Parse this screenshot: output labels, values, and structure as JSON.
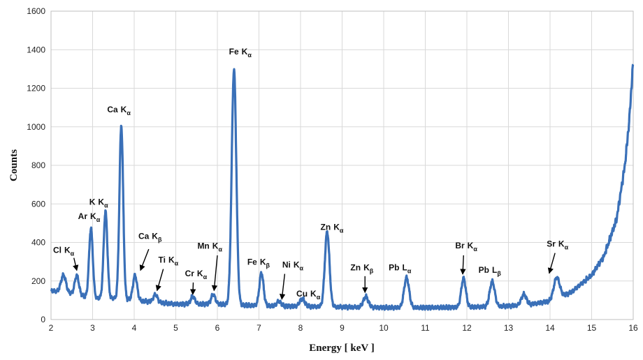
{
  "chart_data": {
    "type": "line",
    "xlabel": "Energy [ keV ]",
    "ylabel": "Counts",
    "xlim": [
      2,
      16
    ],
    "ylim": [
      0,
      1600
    ],
    "xticks": [
      "2",
      "3",
      "4",
      "5",
      "6",
      "7",
      "8",
      "9",
      "10",
      "11",
      "12",
      "13",
      "14",
      "15",
      "16"
    ],
    "yticks": [
      "0",
      "200",
      "400",
      "600",
      "800",
      "1000",
      "1200",
      "1400",
      "1600"
    ],
    "grid": true,
    "series_color": "#3a70b8",
    "baseline": [
      [
        2.0,
        150
      ],
      [
        2.6,
        130
      ],
      [
        3.0,
        110
      ],
      [
        3.5,
        110
      ],
      [
        4.0,
        100
      ],
      [
        4.5,
        90
      ],
      [
        5.0,
        80
      ],
      [
        5.5,
        80
      ],
      [
        6.0,
        80
      ],
      [
        6.5,
        75
      ],
      [
        7.0,
        72
      ],
      [
        8.0,
        68
      ],
      [
        9.0,
        65
      ],
      [
        10.0,
        62
      ],
      [
        11.0,
        62
      ],
      [
        12.0,
        64
      ],
      [
        13.0,
        70
      ],
      [
        13.5,
        78
      ],
      [
        14.0,
        95
      ],
      [
        14.5,
        140
      ],
      [
        15.0,
        230
      ],
      [
        15.3,
        330
      ],
      [
        15.6,
        520
      ],
      [
        15.8,
        800
      ],
      [
        15.9,
        1020
      ],
      [
        16.0,
        1340
      ]
    ],
    "peaks": [
      {
        "x": 2.3,
        "height": 90,
        "width": 0.06
      },
      {
        "x": 2.62,
        "height": 100,
        "width": 0.05
      },
      {
        "x": 2.96,
        "height": 360,
        "width": 0.045
      },
      {
        "x": 3.31,
        "height": 450,
        "width": 0.045
      },
      {
        "x": 3.69,
        "height": 900,
        "width": 0.045
      },
      {
        "x": 4.02,
        "height": 130,
        "width": 0.05
      },
      {
        "x": 4.51,
        "height": 40,
        "width": 0.05
      },
      {
        "x": 5.41,
        "height": 40,
        "width": 0.05
      },
      {
        "x": 5.9,
        "height": 50,
        "width": 0.05
      },
      {
        "x": 6.4,
        "height": 1220,
        "width": 0.055
      },
      {
        "x": 7.06,
        "height": 170,
        "width": 0.05
      },
      {
        "x": 7.48,
        "height": 25,
        "width": 0.05
      },
      {
        "x": 8.04,
        "height": 40,
        "width": 0.06
      },
      {
        "x": 8.64,
        "height": 390,
        "width": 0.055
      },
      {
        "x": 9.57,
        "height": 55,
        "width": 0.06
      },
      {
        "x": 10.55,
        "height": 155,
        "width": 0.06
      },
      {
        "x": 11.92,
        "height": 150,
        "width": 0.055
      },
      {
        "x": 12.61,
        "height": 130,
        "width": 0.06
      },
      {
        "x": 13.37,
        "height": 55,
        "width": 0.06
      },
      {
        "x": 14.16,
        "height": 110,
        "width": 0.07
      }
    ],
    "annotations": [
      {
        "element": "Cl",
        "line": "K",
        "sub": "α",
        "text_x": 2.05,
        "text_y": 345,
        "arrow": {
          "from": [
            2.55,
            320
          ],
          "to": [
            2.62,
            255
          ]
        }
      },
      {
        "element": "Ar",
        "line": "K",
        "sub": "α",
        "text_x": 2.65,
        "text_y": 522,
        "arrow": null
      },
      {
        "element": "K",
        "line": "K",
        "sub": "α",
        "text_x": 2.92,
        "text_y": 595,
        "arrow": null
      },
      {
        "element": "Ca",
        "line": "K",
        "sub": "α",
        "text_x": 3.35,
        "text_y": 1075,
        "arrow": null
      },
      {
        "element": "Ca",
        "line": "K",
        "sub": "β",
        "text_x": 4.1,
        "text_y": 418,
        "arrow": {
          "from": [
            4.35,
            365
          ],
          "to": [
            4.15,
            255
          ]
        }
      },
      {
        "element": "Ti",
        "line": "K",
        "sub": "α",
        "text_x": 4.58,
        "text_y": 295,
        "arrow": {
          "from": [
            4.7,
            262
          ],
          "to": [
            4.55,
            150
          ]
        }
      },
      {
        "element": "Cr",
        "line": "K",
        "sub": "α",
        "text_x": 5.22,
        "text_y": 225,
        "arrow": {
          "from": [
            5.42,
            192
          ],
          "to": [
            5.41,
            130
          ]
        }
      },
      {
        "element": "Mn",
        "line": "K",
        "sub": "α",
        "text_x": 5.52,
        "text_y": 368,
        "arrow": {
          "from": [
            6.0,
            333
          ],
          "to": [
            5.92,
            150
          ]
        }
      },
      {
        "element": "Fe",
        "line": "K",
        "sub": "α",
        "text_x": 6.28,
        "text_y": 1375,
        "arrow": null
      },
      {
        "element": "Fe",
        "line": "K",
        "sub": "β",
        "text_x": 6.72,
        "text_y": 285,
        "arrow": null
      },
      {
        "element": "Ni",
        "line": "K",
        "sub": "α",
        "text_x": 7.56,
        "text_y": 270,
        "arrow": {
          "from": [
            7.62,
            237
          ],
          "to": [
            7.55,
            105
          ]
        }
      },
      {
        "element": "Cu",
        "line": "K",
        "sub": "α",
        "text_x": 7.9,
        "text_y": 120,
        "arrow": null
      },
      {
        "element": "Zn",
        "line": "K",
        "sub": "α",
        "text_x": 8.48,
        "text_y": 465,
        "arrow": null
      },
      {
        "element": "Zn",
        "line": "K",
        "sub": "β",
        "text_x": 9.2,
        "text_y": 255,
        "arrow": {
          "from": [
            9.55,
            225
          ],
          "to": [
            9.55,
            140
          ]
        }
      },
      {
        "element": "Pb",
        "line": "L",
        "sub": "α",
        "text_x": 10.12,
        "text_y": 255,
        "arrow": null
      },
      {
        "element": "Br",
        "line": "K",
        "sub": "α",
        "text_x": 11.72,
        "text_y": 370,
        "arrow": {
          "from": [
            11.92,
            333
          ],
          "to": [
            11.9,
            235
          ]
        }
      },
      {
        "element": "Pb",
        "line": "L",
        "sub": "β",
        "text_x": 12.28,
        "text_y": 242,
        "arrow": null
      },
      {
        "element": "Sr",
        "line": "K",
        "sub": "α",
        "text_x": 13.92,
        "text_y": 378,
        "arrow": {
          "from": [
            14.12,
            345
          ],
          "to": [
            13.98,
            240
          ]
        }
      }
    ]
  }
}
